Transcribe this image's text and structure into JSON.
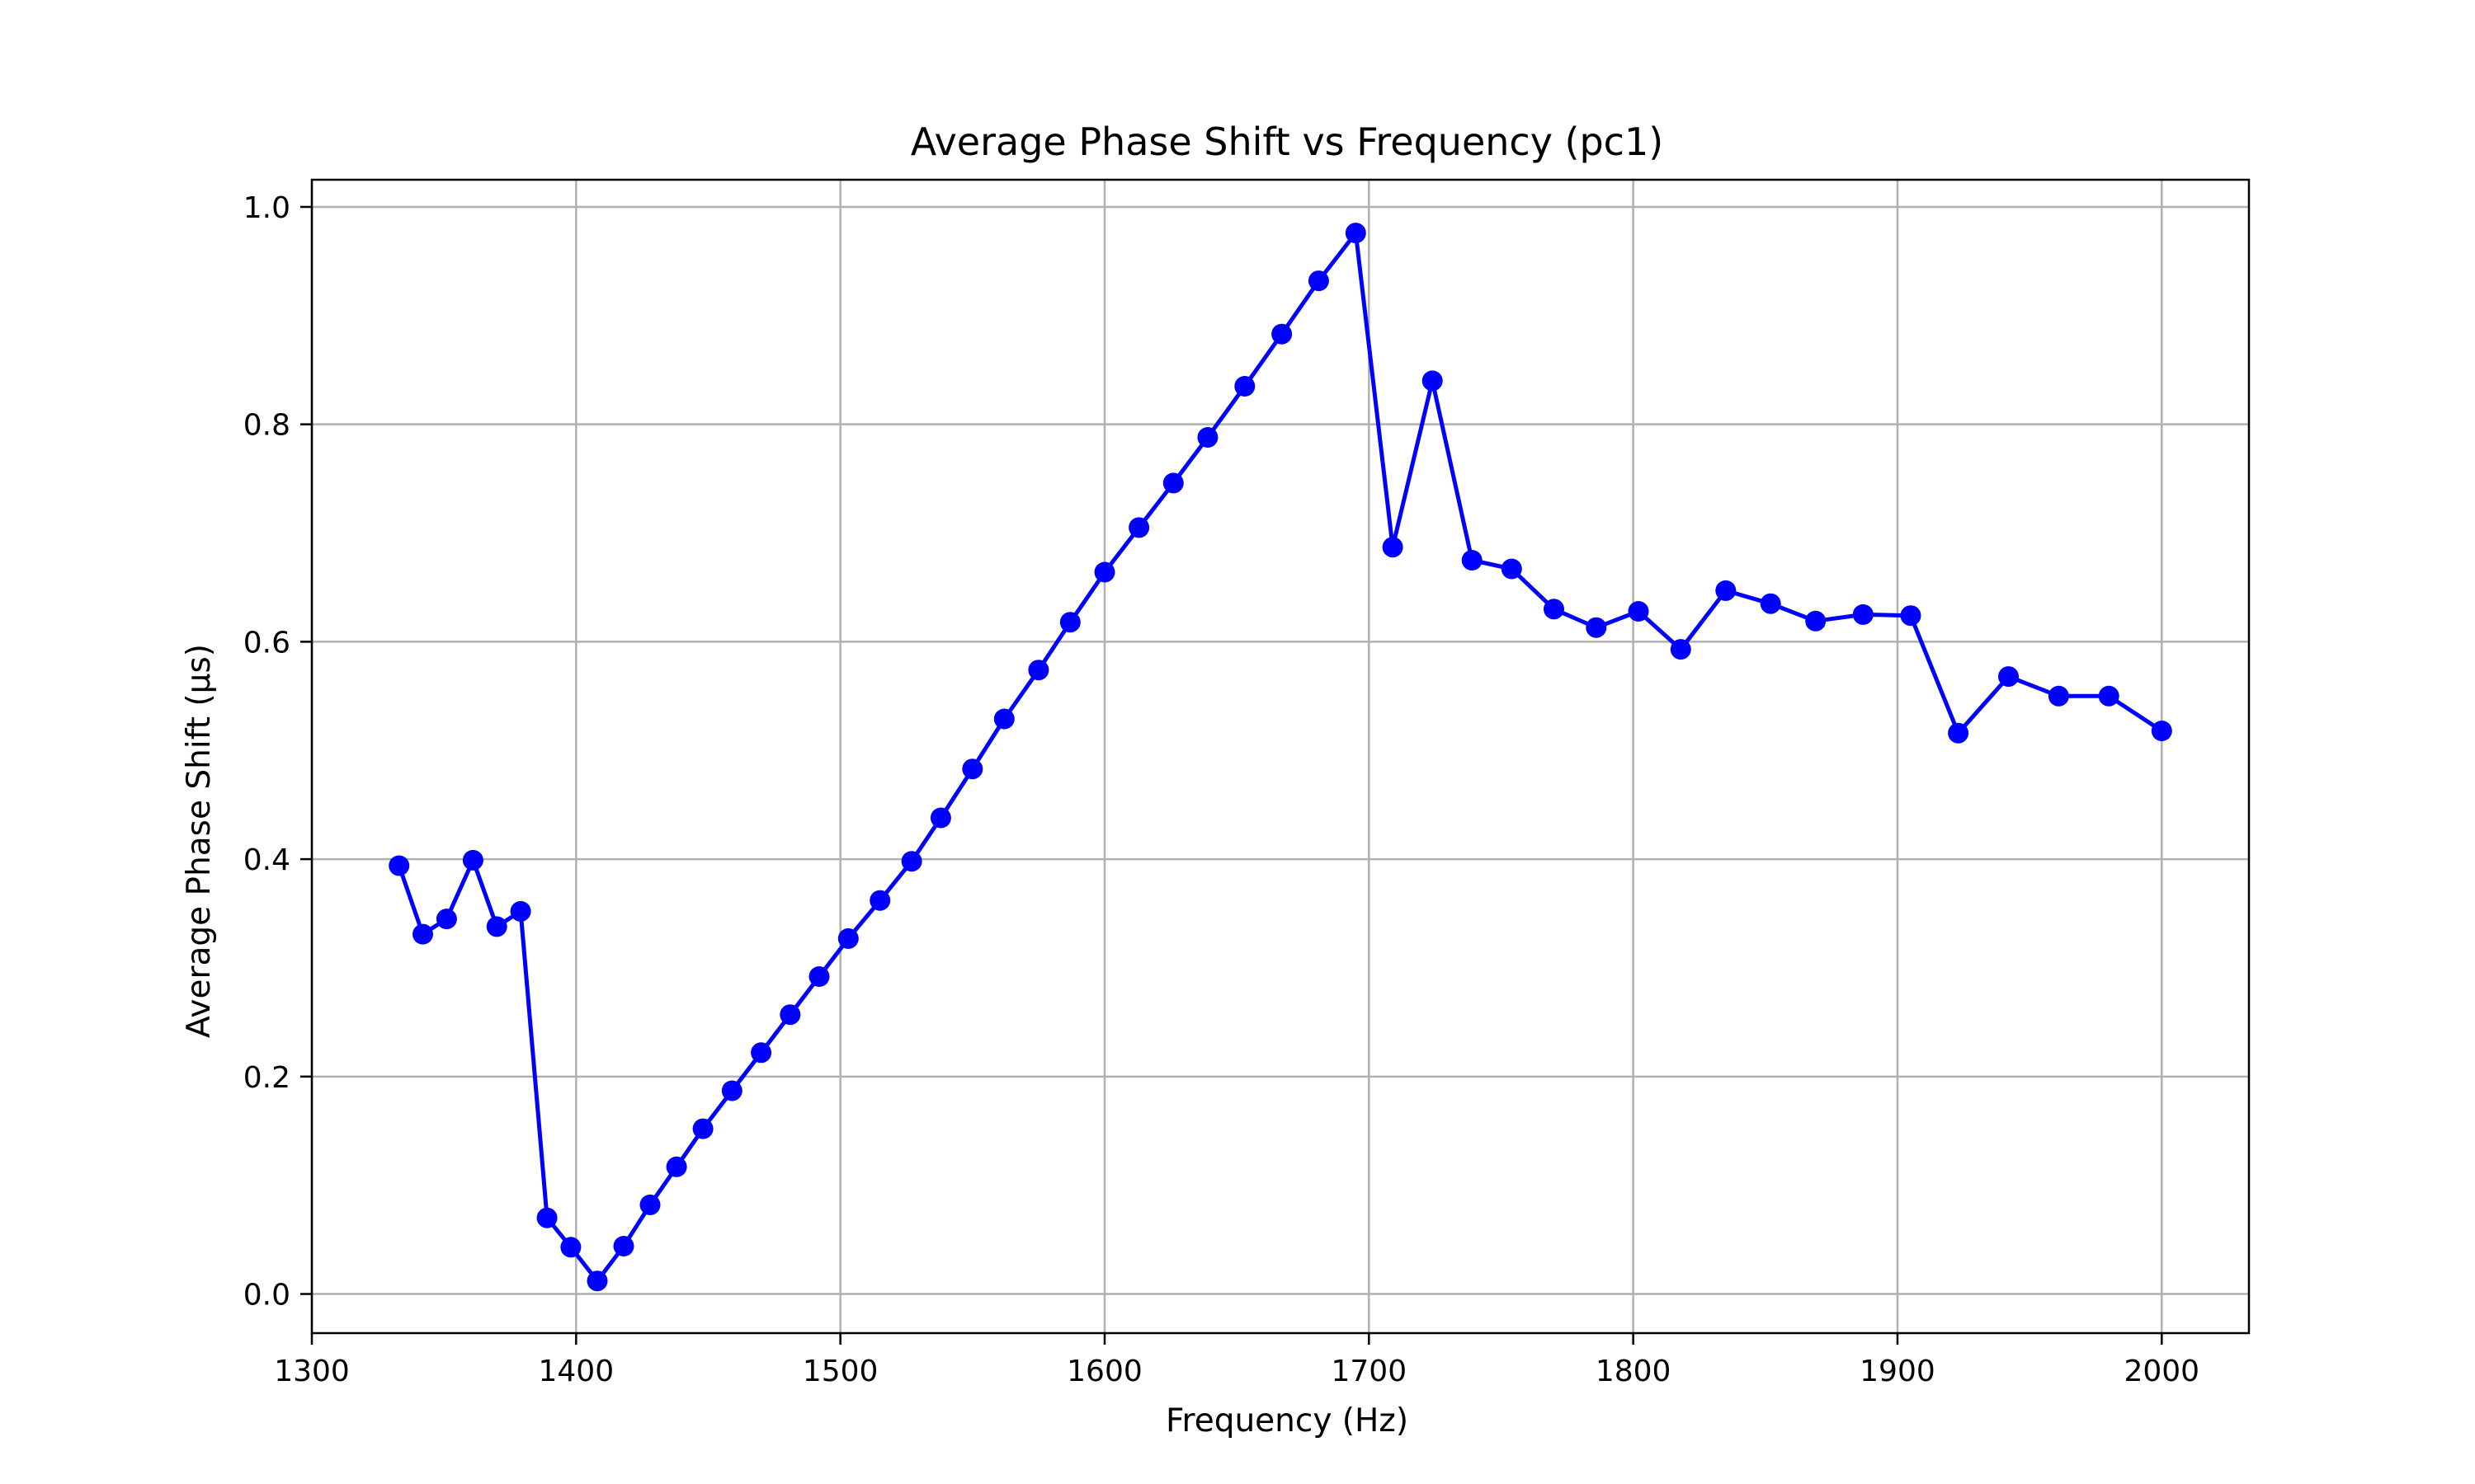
{
  "chart_data": {
    "type": "line",
    "title": "Average Phase Shift vs Frequency (pc1)",
    "xlabel": "Frequency (Hz)",
    "ylabel": "Average Phase Shift (µs)",
    "xlim": [
      1300,
      2033
    ],
    "ylim": [
      -0.036,
      1.025
    ],
    "x_ticks": [
      1300,
      1400,
      1500,
      1600,
      1700,
      1800,
      1900,
      2000
    ],
    "x_tick_labels": [
      "1300",
      "1400",
      "1500",
      "1600",
      "1700",
      "1800",
      "1900",
      "2000"
    ],
    "y_ticks": [
      0.0,
      0.2,
      0.4,
      0.6,
      0.8,
      1.0
    ],
    "y_tick_labels": [
      "0.0",
      "0.2",
      "0.4",
      "0.6",
      "0.8",
      "1.0"
    ],
    "grid": true,
    "marker": "circle",
    "line_color": "#0000ff",
    "series": [
      {
        "x": [
          1333,
          1342,
          1351,
          1361,
          1370,
          1379,
          1389,
          1398,
          1408,
          1418,
          1428,
          1438,
          1448,
          1459,
          1470,
          1481,
          1492,
          1503,
          1515,
          1527,
          1538,
          1550,
          1562,
          1575,
          1587,
          1600,
          1613,
          1626,
          1639,
          1653,
          1667,
          1681,
          1695,
          1709,
          1724,
          1739,
          1754,
          1770,
          1786,
          1802,
          1818,
          1835,
          1852,
          1869,
          1887,
          1905,
          1923,
          1942,
          1961,
          1980,
          2000
        ],
        "y": [
          0.394,
          0.331,
          0.345,
          0.399,
          0.338,
          0.352,
          0.07,
          0.043,
          0.012,
          0.044,
          0.082,
          0.117,
          0.152,
          0.187,
          0.222,
          0.257,
          0.292,
          0.327,
          0.362,
          0.398,
          0.438,
          0.483,
          0.529,
          0.574,
          0.618,
          0.664,
          0.705,
          0.746,
          0.788,
          0.835,
          0.883,
          0.932,
          0.976,
          0.687,
          0.84,
          0.675,
          0.667,
          0.63,
          0.613,
          0.628,
          0.593,
          0.647,
          0.635,
          0.619,
          0.625,
          0.624,
          0.516,
          0.568,
          0.55,
          0.55,
          0.518
        ]
      }
    ]
  }
}
